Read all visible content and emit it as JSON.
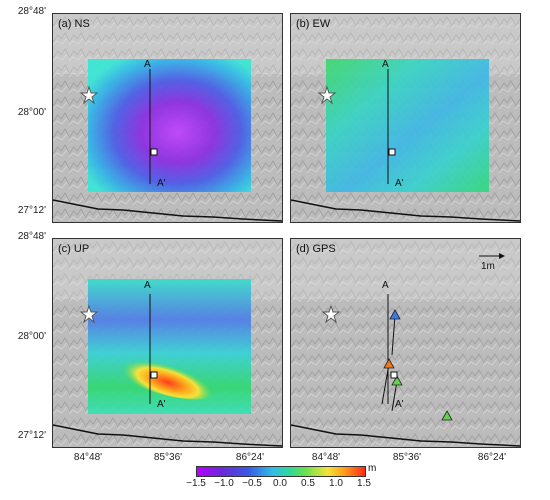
{
  "panels": [
    {
      "id": "a",
      "label": "(a) NS"
    },
    {
      "id": "b",
      "label": "(b) EW"
    },
    {
      "id": "c",
      "label": "(c) UP"
    },
    {
      "id": "d",
      "label": "(d) GPS"
    }
  ],
  "profile_labels": {
    "start": "A",
    "end": "A'"
  },
  "scale_arrow_label": "1m",
  "lat_labels": {
    "top": "28°48'",
    "mid": "28°00'",
    "bottom": "27°12'"
  },
  "lon_labels": [
    "84°48'",
    "85°36'",
    "86°24'"
  ],
  "colorbar": {
    "unit": "m",
    "ticks": [
      "−1.5",
      "−1.0",
      "−0.5",
      "0.0",
      "0.5",
      "1.0",
      "1.5"
    ]
  },
  "colors": {
    "terrain": "#bdbdbd",
    "frame": "#333333"
  },
  "icons": [
    "epicenter-star-icon",
    "station-square-icon",
    "gps-triangle-icon",
    "fault-line-icon"
  ]
}
